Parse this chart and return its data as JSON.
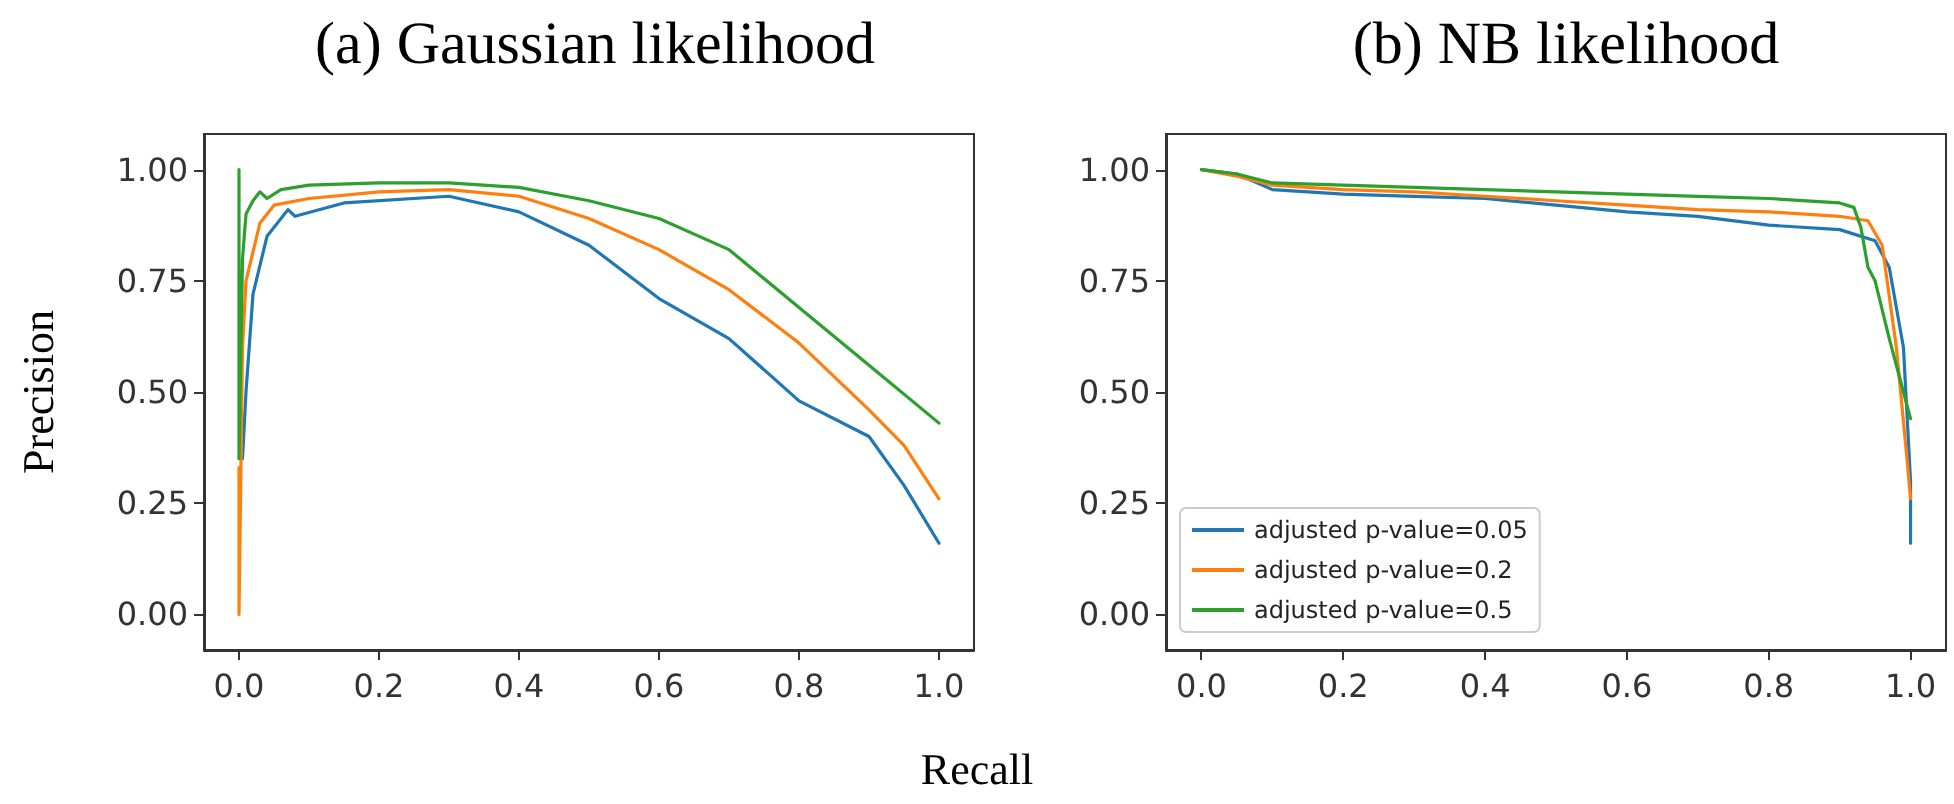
{
  "chart_data": [
    {
      "type": "line",
      "title": "(a) Gaussian likelihood",
      "xlabel": "Recall",
      "ylabel": "Precision",
      "grid": false,
      "legend": false,
      "marker": "none",
      "line_style": "solid",
      "xlim": [
        -0.05,
        1.05
      ],
      "ylim": [
        -0.08,
        1.08
      ],
      "xticks": [
        {
          "value": 0,
          "label": "0.0"
        },
        {
          "value": 0.2,
          "label": "0.2"
        },
        {
          "value": 0.4,
          "label": "0.4"
        },
        {
          "value": 0.6,
          "label": "0.6"
        },
        {
          "value": 0.8,
          "label": "0.8"
        },
        {
          "value": 1,
          "label": "1.0"
        }
      ],
      "yticks": [
        {
          "value": 0,
          "label": "0.00"
        },
        {
          "value": 0.25,
          "label": "0.25"
        },
        {
          "value": 0.5,
          "label": "0.50"
        },
        {
          "value": 0.75,
          "label": "0.75"
        },
        {
          "value": 1,
          "label": "1.00"
        }
      ],
      "series": [
        {
          "color": "#1f77b4",
          "x": [
            0.005,
            0.01,
            0.02,
            0.04,
            0.07,
            0.08,
            0.15,
            0.3,
            0.4,
            0.5,
            0.6,
            0.7,
            0.8,
            0.9,
            0.95,
            1.0
          ],
          "values": [
            0.35,
            0.5,
            0.72,
            0.85,
            0.91,
            0.895,
            0.925,
            0.94,
            0.905,
            0.83,
            0.71,
            0.62,
            0.48,
            0.4,
            0.29,
            0.16
          ]
        },
        {
          "color": "#ff7f0e",
          "x": [
            0,
            0,
            0.005,
            0.01,
            0.03,
            0.05,
            0.1,
            0.2,
            0.3,
            0.4,
            0.5,
            0.6,
            0.7,
            0.8,
            0.9,
            0.95,
            1.0
          ],
          "values": [
            0.33,
            0.0,
            0.6,
            0.75,
            0.88,
            0.92,
            0.935,
            0.95,
            0.955,
            0.94,
            0.89,
            0.82,
            0.73,
            0.61,
            0.46,
            0.38,
            0.26
          ]
        },
        {
          "color": "#2ca02c",
          "x": [
            0,
            0,
            0.005,
            0.01,
            0.02,
            0.03,
            0.04,
            0.06,
            0.1,
            0.2,
            0.3,
            0.4,
            0.5,
            0.6,
            0.7,
            0.8,
            0.9,
            1.0
          ],
          "values": [
            1.0,
            0.35,
            0.8,
            0.9,
            0.93,
            0.95,
            0.935,
            0.955,
            0.965,
            0.97,
            0.97,
            0.96,
            0.93,
            0.89,
            0.82,
            0.69,
            0.56,
            0.43
          ]
        }
      ]
    },
    {
      "type": "line",
      "title": "(b) NB likelihood",
      "grid": false,
      "legend": "bottom left",
      "marker": "none",
      "line_style": "solid",
      "xlim": [
        -0.05,
        1.05
      ],
      "ylim": [
        -0.08,
        1.08
      ],
      "xticks": [
        {
          "value": 0,
          "label": "0.0"
        },
        {
          "value": 0.2,
          "label": "0.2"
        },
        {
          "value": 0.4,
          "label": "0.4"
        },
        {
          "value": 0.6,
          "label": "0.6"
        },
        {
          "value": 0.8,
          "label": "0.8"
        },
        {
          "value": 1,
          "label": "1.0"
        }
      ],
      "yticks": [
        {
          "value": 0,
          "label": "0.00"
        },
        {
          "value": 0.25,
          "label": "0.25"
        },
        {
          "value": 0.5,
          "label": "0.50"
        },
        {
          "value": 0.75,
          "label": "0.75"
        },
        {
          "value": 1,
          "label": "1.00"
        }
      ],
      "series": [
        {
          "name": "adjusted p-value=0.05",
          "color": "#1f77b4",
          "x": [
            0,
            0.05,
            0.1,
            0.2,
            0.3,
            0.4,
            0.5,
            0.6,
            0.7,
            0.8,
            0.9,
            0.95,
            0.97,
            0.99,
            1.0,
            1.0
          ],
          "values": [
            1.0,
            0.99,
            0.955,
            0.945,
            0.94,
            0.935,
            0.92,
            0.905,
            0.895,
            0.875,
            0.865,
            0.84,
            0.78,
            0.6,
            0.3,
            0.16
          ]
        },
        {
          "name": "adjusted p-value=0.2",
          "color": "#ff7f0e",
          "x": [
            0,
            0.05,
            0.1,
            0.2,
            0.3,
            0.4,
            0.5,
            0.6,
            0.7,
            0.8,
            0.9,
            0.94,
            0.96,
            0.98,
            0.995,
            1.0
          ],
          "values": [
            1.0,
            0.985,
            0.965,
            0.955,
            0.95,
            0.94,
            0.93,
            0.92,
            0.91,
            0.905,
            0.895,
            0.885,
            0.83,
            0.6,
            0.35,
            0.26
          ]
        },
        {
          "name": "adjusted p-value=0.5",
          "color": "#2ca02c",
          "x": [
            0,
            0.05,
            0.1,
            0.2,
            0.3,
            0.4,
            0.5,
            0.6,
            0.7,
            0.8,
            0.9,
            0.92,
            0.93,
            0.94,
            0.95,
            0.97,
            0.99,
            1.0
          ],
          "values": [
            1.0,
            0.99,
            0.97,
            0.965,
            0.96,
            0.955,
            0.95,
            0.945,
            0.94,
            0.935,
            0.925,
            0.915,
            0.87,
            0.78,
            0.75,
            0.62,
            0.5,
            0.44
          ]
        }
      ]
    }
  ]
}
